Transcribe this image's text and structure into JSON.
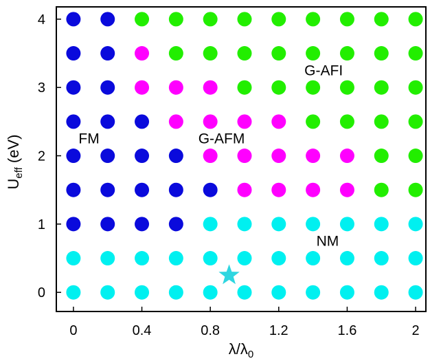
{
  "chart_data": {
    "type": "scatter",
    "xlabel": {
      "main": "λ/λ",
      "sub": "0"
    },
    "ylabel": {
      "main": "U",
      "sub": "eff",
      "rest": " (eV)"
    },
    "xlim": [
      -0.1,
      2.06
    ],
    "ylim": [
      -0.28,
      4.18
    ],
    "x_ticks": [
      0,
      0.4,
      0.8,
      1.2,
      1.6,
      2
    ],
    "x_tick_labels": [
      "0",
      "0.4",
      "0.8",
      "1.2",
      "1.6",
      "2"
    ],
    "y_ticks": [
      0,
      1,
      2,
      3,
      4
    ],
    "y_tick_labels": [
      "0",
      "1",
      "2",
      "3",
      "4"
    ],
    "grid": false,
    "colors": {
      "FM": "#0a0adc",
      "G-AFM": "#ff00ff",
      "G-AFI": "#22ee00",
      "NM": "#00f0f0"
    },
    "lambda_values": [
      0,
      0.2,
      0.4,
      0.6,
      0.8,
      1.0,
      1.2,
      1.4,
      1.6,
      1.8,
      2.0
    ],
    "rows": [
      {
        "U": 4.0,
        "phases": [
          "FM",
          "FM",
          "G-AFI",
          "G-AFI",
          "G-AFI",
          "G-AFI",
          "G-AFI",
          "G-AFI",
          "G-AFI",
          "G-AFI",
          "G-AFI"
        ]
      },
      {
        "U": 3.5,
        "phases": [
          "FM",
          "FM",
          "G-AFM",
          "G-AFI",
          "G-AFI",
          "G-AFI",
          "G-AFI",
          "G-AFI",
          "G-AFI",
          "G-AFI",
          "G-AFI"
        ]
      },
      {
        "U": 3.0,
        "phases": [
          "FM",
          "FM",
          "G-AFM",
          "G-AFM",
          "G-AFM",
          "G-AFI",
          "G-AFI",
          "G-AFI",
          "G-AFI",
          "G-AFI",
          "G-AFI"
        ]
      },
      {
        "U": 2.5,
        "phases": [
          "FM",
          "FM",
          "FM",
          "G-AFM",
          "G-AFM",
          "G-AFM",
          "G-AFM",
          "G-AFI",
          "G-AFI",
          "G-AFI",
          "G-AFI"
        ]
      },
      {
        "U": 2.0,
        "phases": [
          "FM",
          "FM",
          "FM",
          "FM",
          "G-AFM",
          "G-AFM",
          "G-AFM",
          "G-AFM",
          "G-AFM",
          "G-AFI",
          "G-AFI"
        ]
      },
      {
        "U": 1.5,
        "phases": [
          "FM",
          "FM",
          "FM",
          "FM",
          "FM",
          "G-AFM",
          "G-AFM",
          "G-AFM",
          "G-AFM",
          "G-AFI",
          "G-AFI"
        ]
      },
      {
        "U": 1.0,
        "phases": [
          "FM",
          "FM",
          "FM",
          "FM",
          "NM",
          "NM",
          "NM",
          "NM",
          "NM",
          "NM",
          "NM"
        ]
      },
      {
        "U": 0.5,
        "phases": [
          "NM",
          "NM",
          "NM",
          "NM",
          "NM",
          "NM",
          "NM",
          "NM",
          "NM",
          "NM",
          "NM"
        ]
      },
      {
        "U": 0.0,
        "phases": [
          "NM",
          "NM",
          "NM",
          "NM",
          "NM",
          "NM",
          "NM",
          "NM",
          "NM",
          "NM",
          "NM"
        ]
      }
    ],
    "star": {
      "x": 0.91,
      "y": 0.25,
      "color": "#2ed6e0"
    },
    "annotations": [
      {
        "text": "FM",
        "x": 0.03,
        "y": 2.25
      },
      {
        "text": "G-AFM",
        "x": 0.73,
        "y": 2.25
      },
      {
        "text": "G-AFI",
        "x": 1.35,
        "y": 3.25
      },
      {
        "text": "NM",
        "x": 1.42,
        "y": 0.75
      }
    ]
  }
}
